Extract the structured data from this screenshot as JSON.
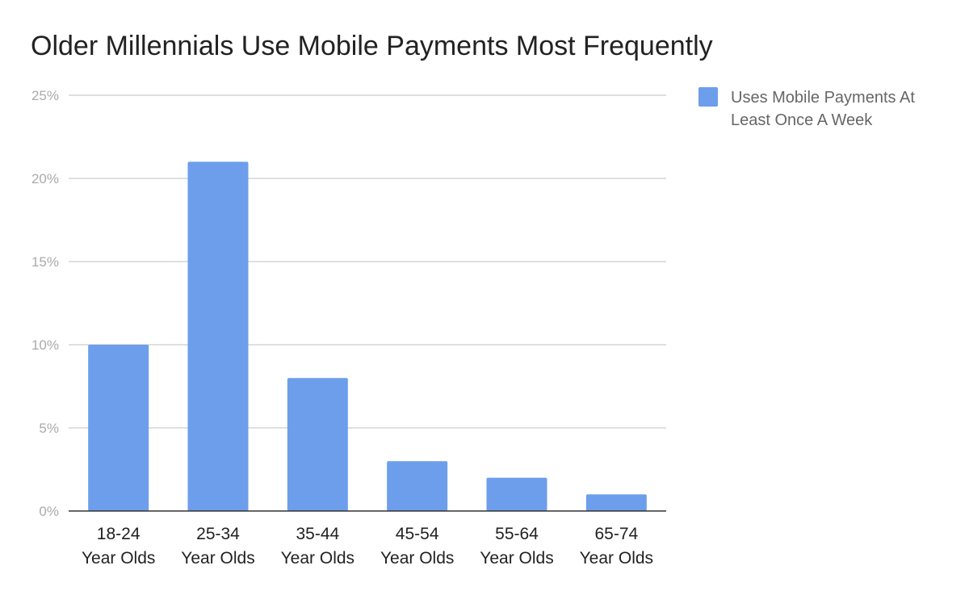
{
  "chart_data": {
    "type": "bar",
    "title": "Older Millennials Use Mobile Payments Most Frequently",
    "categories": [
      [
        "18-24",
        "Year Olds"
      ],
      [
        "25-34",
        "Year Olds"
      ],
      [
        "35-44",
        "Year Olds"
      ],
      [
        "45-54",
        "Year Olds"
      ],
      [
        "55-64",
        "Year Olds"
      ],
      [
        "65-74",
        "Year Olds"
      ]
    ],
    "series": [
      {
        "name": "Uses Mobile Payments At Least Once A Week",
        "values": [
          10,
          21,
          8,
          3,
          2,
          1
        ],
        "color": "#6d9eeb"
      }
    ],
    "ylim": [
      0,
      25
    ],
    "yticks": [
      0,
      5,
      10,
      15,
      20,
      25
    ],
    "ytick_labels": [
      "0%",
      "5%",
      "10%",
      "15%",
      "20%",
      "25%"
    ],
    "grid": true,
    "legend": {
      "placement": "right",
      "lines": [
        "Uses Mobile Payments At",
        "Least Once A Week"
      ]
    }
  }
}
